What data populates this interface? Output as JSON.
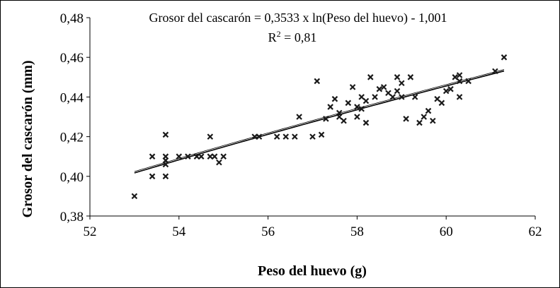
{
  "chart_data": {
    "type": "scatter",
    "xlabel": "Peso del huevo (g)",
    "ylabel": "Grosor del cascarón (mm)",
    "xlim": [
      52,
      62
    ],
    "ylim": [
      0.38,
      0.48
    ],
    "x_ticks": [
      "52",
      "54",
      "56",
      "58",
      "60",
      "62"
    ],
    "y_ticks": [
      "0,38",
      "0,40",
      "0,42",
      "0,44",
      "0,46",
      "0,48"
    ],
    "grid": false,
    "legend": "none",
    "marker": "x",
    "color": "#1a1a1a",
    "annotations": {
      "equation": "Grosor del cascarón = 0,3533 x  ln(Peso del huevo) - 1,001",
      "r2_label": "R",
      "r2_sup": "2",
      "r2_value": " = 0,81"
    },
    "trendline": {
      "type": "log",
      "a": 0.3533,
      "b": -1.001,
      "x_range": [
        53,
        61.3
      ]
    },
    "series": [
      {
        "x": [
          53.0,
          53.4,
          53.4,
          53.7,
          53.7,
          53.7,
          53.7,
          53.7,
          54.0,
          54.2,
          54.4,
          54.5,
          54.7,
          54.7,
          54.8,
          54.9,
          55.0,
          55.7,
          55.8,
          56.2,
          56.4,
          56.6,
          56.7,
          57.0,
          57.1,
          57.2,
          57.3,
          57.4,
          57.5,
          57.6,
          57.6,
          57.7,
          57.8,
          57.9,
          58.0,
          58.0,
          58.1,
          58.1,
          58.2,
          58.2,
          58.3,
          58.4,
          58.5,
          58.6,
          58.7,
          58.8,
          58.9,
          58.9,
          59.0,
          59.0,
          59.1,
          59.2,
          59.3,
          59.4,
          59.5,
          59.6,
          59.7,
          59.8,
          59.9,
          60.0,
          60.1,
          60.2,
          60.3,
          60.3,
          60.3,
          60.5,
          61.1,
          61.3
        ],
        "y": [
          0.39,
          0.41,
          0.4,
          0.421,
          0.41,
          0.408,
          0.406,
          0.4,
          0.41,
          0.41,
          0.41,
          0.41,
          0.42,
          0.41,
          0.41,
          0.407,
          0.41,
          0.42,
          0.42,
          0.42,
          0.42,
          0.42,
          0.43,
          0.42,
          0.448,
          0.421,
          0.429,
          0.435,
          0.439,
          0.432,
          0.43,
          0.428,
          0.437,
          0.445,
          0.435,
          0.43,
          0.44,
          0.434,
          0.438,
          0.427,
          0.45,
          0.44,
          0.444,
          0.445,
          0.442,
          0.44,
          0.45,
          0.443,
          0.447,
          0.44,
          0.429,
          0.45,
          0.44,
          0.427,
          0.43,
          0.433,
          0.428,
          0.439,
          0.437,
          0.443,
          0.444,
          0.45,
          0.451,
          0.448,
          0.44,
          0.448,
          0.453,
          0.46
        ]
      }
    ]
  }
}
